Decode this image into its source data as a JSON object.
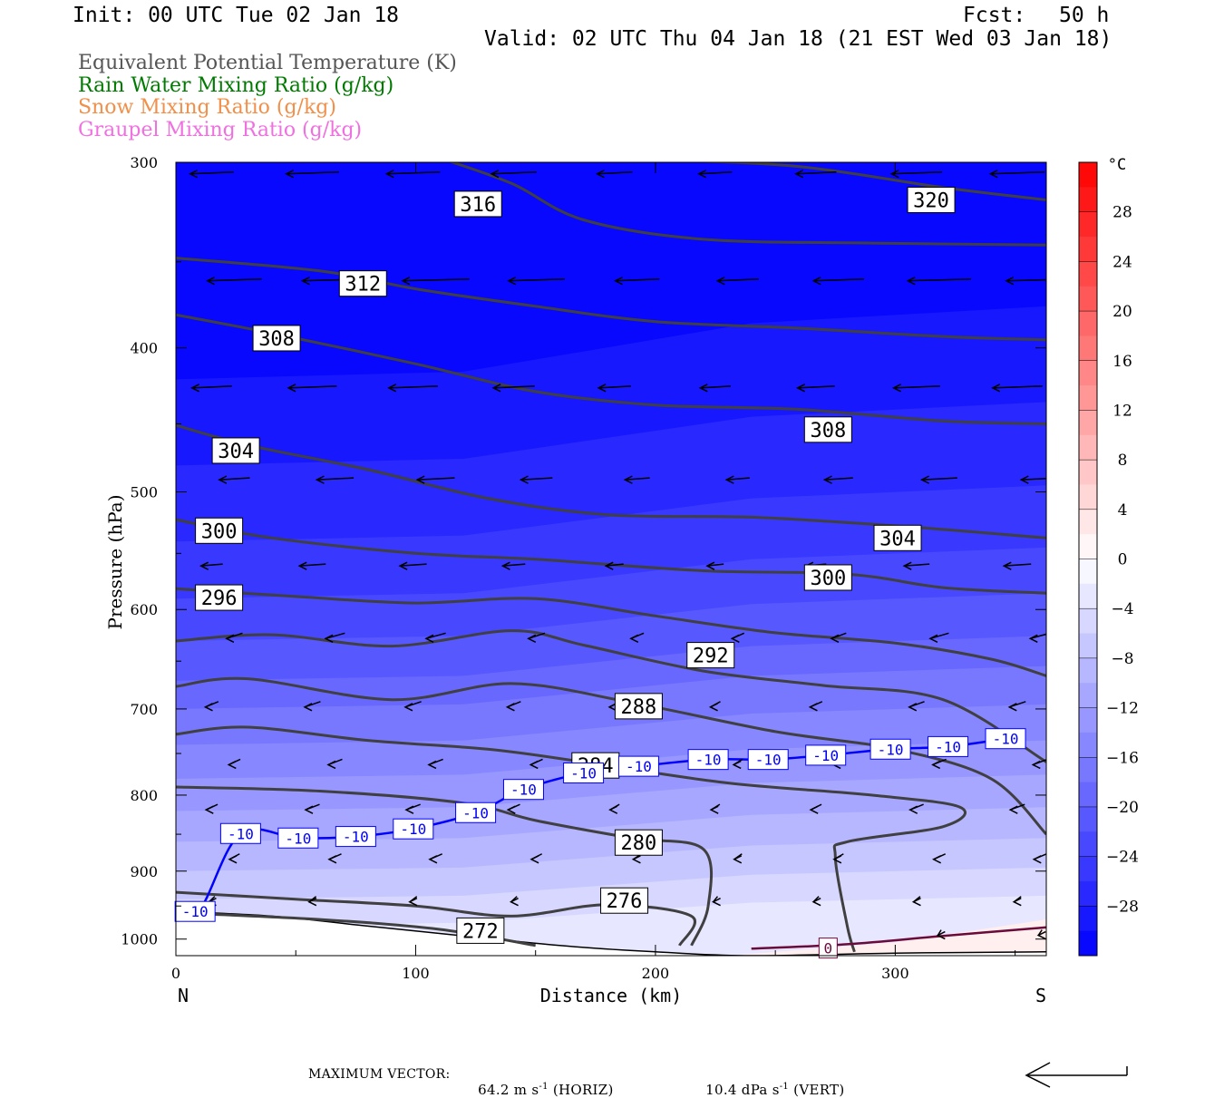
{
  "header": {
    "init": "Init: 00 UTC Tue 02 Jan 18",
    "fcst_label": "Fcst:",
    "fcst_value": "50 h",
    "valid": "Valid: 02 UTC Thu 04 Jan 18 (21 EST Wed 03 Jan 18)"
  },
  "legend": [
    {
      "text": "Equivalent Potential Temperature (K)",
      "color": "#555555"
    },
    {
      "text": "Rain Water Mixing Ratio (g/kg)",
      "color": "#007a00"
    },
    {
      "text": "Snow Mixing Ratio (g/kg)",
      "color": "#f0904a"
    },
    {
      "text": "Graupel Mixing Ratio (g/kg)",
      "color": "#f070e0"
    }
  ],
  "footer": {
    "max_vector_label": "MAXIMUM VECTOR:",
    "horiz_value": "64.2 m s",
    "horiz_exp": "-1",
    "horiz_tag": "(HORIZ)",
    "vert_value": "10.4 dPa s",
    "vert_exp": "-1",
    "vert_tag": "(VERT)"
  },
  "chart_data": {
    "type": "cross-section",
    "xlabel": "Distance (km)",
    "ylabel": "Pressure (hPa)",
    "xlim": [
      0,
      363
    ],
    "ylim": [
      1026,
      300
    ],
    "y_scale": "log",
    "x_ticks": [
      0,
      100,
      200,
      300
    ],
    "y_ticks": [
      300,
      400,
      500,
      600,
      700,
      800,
      900,
      1000
    ],
    "x_end_labels": {
      "left": "N",
      "right": "S"
    },
    "colorbar": {
      "unit": "°C",
      "tick_labels": [
        "28",
        "24",
        "20",
        "16",
        "12",
        "8",
        "4",
        "0",
        "-4",
        "-8",
        "-12",
        "-16",
        "-20",
        "-24",
        "-28"
      ],
      "tick_values": [
        28,
        24,
        20,
        16,
        12,
        8,
        4,
        0,
        -4,
        -8,
        -12,
        -16,
        -20,
        -24,
        -28
      ],
      "range": [
        -32,
        32
      ],
      "step": 2
    },
    "theta_e_contours": [
      {
        "value": 320,
        "label_pos": [
          315,
          318
        ],
        "points": [
          [
            0,
            297
          ],
          [
            60,
            297
          ],
          [
            130,
            298
          ],
          [
            200,
            299
          ],
          [
            260,
            302
          ],
          [
            320,
            312
          ],
          [
            363,
            318
          ]
        ]
      },
      {
        "value": 316,
        "label_pos": [
          126,
          320
        ],
        "points": [
          [
            110,
            298
          ],
          [
            140,
            310
          ],
          [
            170,
            328
          ],
          [
            220,
            338
          ],
          [
            290,
            340
          ],
          [
            363,
            341
          ]
        ]
      },
      {
        "value": 312,
        "label_pos": [
          78,
          362
        ],
        "points": [
          [
            0,
            348
          ],
          [
            60,
            355
          ],
          [
            100,
            365
          ],
          [
            150,
            375
          ],
          [
            200,
            384
          ],
          [
            260,
            388
          ],
          [
            320,
            393
          ],
          [
            363,
            395
          ]
        ]
      },
      {
        "value": 308,
        "label_pos": [
          42,
          394
        ],
        "points": [
          [
            0,
            380
          ],
          [
            40,
            391
          ],
          [
            100,
            410
          ],
          [
            150,
            428
          ],
          [
            200,
            437
          ],
          [
            260,
            440
          ],
          [
            320,
            448
          ],
          [
            363,
            450
          ]
        ]
      },
      {
        "value": 308,
        "label_pos": [
          272,
          454
        ],
        "points": []
      },
      {
        "value": 304,
        "label_pos": [
          25,
          469
        ],
        "points": [
          [
            0,
            451
          ],
          [
            30,
            465
          ],
          [
            80,
            483
          ],
          [
            130,
            505
          ],
          [
            180,
            518
          ],
          [
            240,
            520
          ],
          [
            300,
            527
          ],
          [
            363,
            537
          ]
        ]
      },
      {
        "value": 304,
        "label_pos": [
          301,
          537
        ],
        "points": []
      },
      {
        "value": 300,
        "label_pos": [
          18,
          531
        ],
        "points": [
          [
            0,
            522
          ],
          [
            40,
            537
          ],
          [
            100,
            550
          ],
          [
            150,
            555
          ],
          [
            220,
            565
          ],
          [
            280,
            568
          ],
          [
            320,
            580
          ],
          [
            363,
            585
          ]
        ]
      },
      {
        "value": 300,
        "label_pos": [
          272,
          571
        ],
        "points": []
      },
      {
        "value": 296,
        "label_pos": [
          18,
          589
        ],
        "points": [
          [
            0,
            581
          ],
          [
            50,
            588
          ],
          [
            100,
            594
          ],
          [
            150,
            590
          ],
          [
            200,
            606
          ],
          [
            250,
            622
          ],
          [
            300,
            632
          ],
          [
            340,
            648
          ],
          [
            363,
            665
          ]
        ]
      },
      {
        "value": 292,
        "label_pos": [
          223,
          644
        ],
        "points": [
          [
            0,
            630
          ],
          [
            40,
            624
          ],
          [
            90,
            635
          ],
          [
            140,
            620
          ],
          [
            170,
            634
          ],
          [
            220,
            660
          ],
          [
            270,
            675
          ],
          [
            320,
            690
          ],
          [
            363,
            760
          ]
        ]
      },
      {
        "value": 288,
        "label_pos": [
          193,
          697
        ],
        "points": [
          [
            0,
            676
          ],
          [
            30,
            668
          ],
          [
            90,
            690
          ],
          [
            140,
            673
          ],
          [
            190,
            693
          ],
          [
            250,
            725
          ],
          [
            300,
            745
          ],
          [
            340,
            780
          ],
          [
            363,
            850
          ]
        ]
      },
      {
        "value": 284,
        "label_pos": [
          175,
          764
        ],
        "points": [
          [
            0,
            728
          ],
          [
            30,
            720
          ],
          [
            80,
            735
          ],
          [
            130,
            745
          ],
          [
            170,
            760
          ],
          [
            230,
            785
          ],
          [
            290,
            800
          ],
          [
            327,
            815
          ],
          [
            320,
            840
          ],
          [
            280,
            860
          ],
          [
            275,
            880
          ],
          [
            280,
            980
          ],
          [
            283,
            1020
          ]
        ]
      },
      {
        "value": 280,
        "label_pos": [
          193,
          861
        ],
        "points": [
          [
            0,
            790
          ],
          [
            60,
            795
          ],
          [
            120,
            810
          ],
          [
            150,
            832
          ],
          [
            190,
            855
          ],
          [
            220,
            870
          ],
          [
            222,
            950
          ],
          [
            215,
            1010
          ]
        ]
      },
      {
        "value": 276,
        "label_pos": [
          187,
          942
        ],
        "points": [
          [
            0,
            930
          ],
          [
            50,
            940
          ],
          [
            100,
            950
          ],
          [
            140,
            965
          ],
          [
            180,
            948
          ],
          [
            215,
            965
          ],
          [
            210,
            1010
          ]
        ]
      },
      {
        "value": 272,
        "label_pos": [
          127,
          987
        ],
        "points": [
          [
            0,
            960
          ],
          [
            60,
            970
          ],
          [
            110,
            985
          ],
          [
            150,
            1010
          ]
        ]
      }
    ],
    "temperature_contours": [
      {
        "value": -10,
        "color": "#0000ff",
        "label": "-10",
        "label_pos": [
          [
            8,
            958
          ],
          [
            27,
            849
          ],
          [
            51,
            855
          ],
          [
            75,
            853
          ],
          [
            99,
            843
          ],
          [
            125,
            822
          ],
          [
            145,
            793
          ],
          [
            170,
            773
          ],
          [
            193,
            765
          ],
          [
            222,
            757
          ],
          [
            247,
            757
          ],
          [
            271,
            752
          ],
          [
            298,
            745
          ],
          [
            322,
            742
          ],
          [
            346,
            733
          ]
        ]
      },
      {
        "value": 0,
        "color": "#6a0a3a",
        "label": "0",
        "label_pos": [
          [
            272,
            1014
          ]
        ]
      }
    ],
    "wind_vector_rows_hpa": [
      305,
      360,
      425,
      490,
      560,
      625,
      695,
      760,
      815,
      880,
      940,
      990
    ]
  }
}
